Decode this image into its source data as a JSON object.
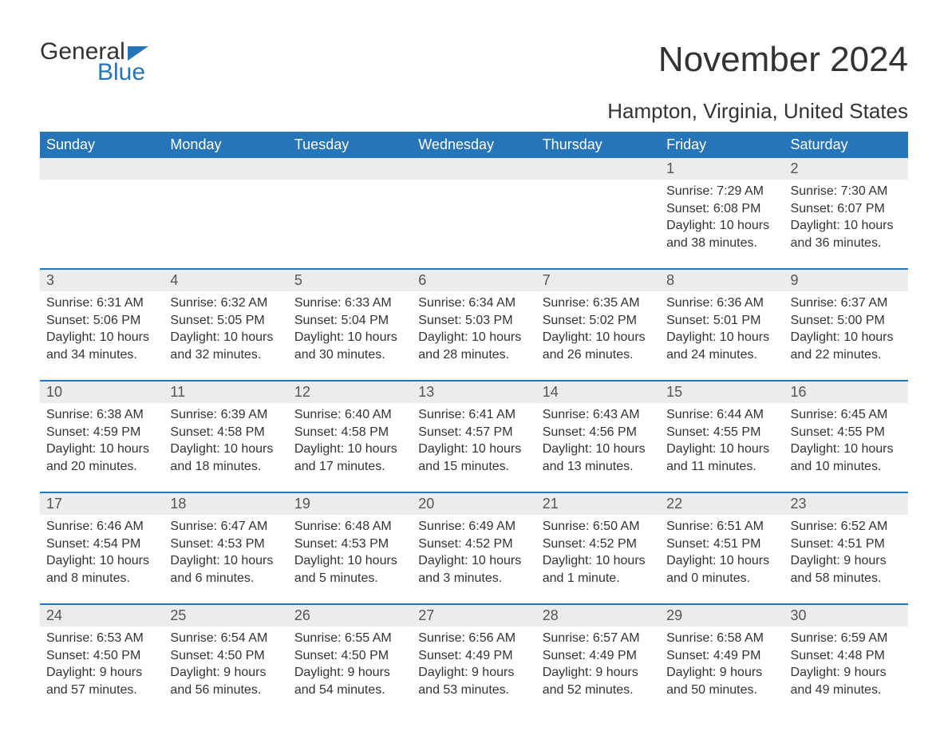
{
  "brand": {
    "word1": "General",
    "word2": "Blue"
  },
  "title": "November 2024",
  "location": "Hampton, Virginia, United States",
  "colors": {
    "header_bg": "#2675b8",
    "header_text": "#ffffff",
    "daynum_bg": "#ececec",
    "border": "#2675b8",
    "text": "#333333",
    "brand_accent": "#2675b8",
    "page_bg": "#ffffff"
  },
  "day_names": [
    "Sunday",
    "Monday",
    "Tuesday",
    "Wednesday",
    "Thursday",
    "Friday",
    "Saturday"
  ],
  "weeks": [
    [
      {
        "n": "",
        "sr": "",
        "ss": "",
        "dl": ""
      },
      {
        "n": "",
        "sr": "",
        "ss": "",
        "dl": ""
      },
      {
        "n": "",
        "sr": "",
        "ss": "",
        "dl": ""
      },
      {
        "n": "",
        "sr": "",
        "ss": "",
        "dl": ""
      },
      {
        "n": "",
        "sr": "",
        "ss": "",
        "dl": ""
      },
      {
        "n": "1",
        "sr": "Sunrise: 7:29 AM",
        "ss": "Sunset: 6:08 PM",
        "dl": "Daylight: 10 hours and 38 minutes."
      },
      {
        "n": "2",
        "sr": "Sunrise: 7:30 AM",
        "ss": "Sunset: 6:07 PM",
        "dl": "Daylight: 10 hours and 36 minutes."
      }
    ],
    [
      {
        "n": "3",
        "sr": "Sunrise: 6:31 AM",
        "ss": "Sunset: 5:06 PM",
        "dl": "Daylight: 10 hours and 34 minutes."
      },
      {
        "n": "4",
        "sr": "Sunrise: 6:32 AM",
        "ss": "Sunset: 5:05 PM",
        "dl": "Daylight: 10 hours and 32 minutes."
      },
      {
        "n": "5",
        "sr": "Sunrise: 6:33 AM",
        "ss": "Sunset: 5:04 PM",
        "dl": "Daylight: 10 hours and 30 minutes."
      },
      {
        "n": "6",
        "sr": "Sunrise: 6:34 AM",
        "ss": "Sunset: 5:03 PM",
        "dl": "Daylight: 10 hours and 28 minutes."
      },
      {
        "n": "7",
        "sr": "Sunrise: 6:35 AM",
        "ss": "Sunset: 5:02 PM",
        "dl": "Daylight: 10 hours and 26 minutes."
      },
      {
        "n": "8",
        "sr": "Sunrise: 6:36 AM",
        "ss": "Sunset: 5:01 PM",
        "dl": "Daylight: 10 hours and 24 minutes."
      },
      {
        "n": "9",
        "sr": "Sunrise: 6:37 AM",
        "ss": "Sunset: 5:00 PM",
        "dl": "Daylight: 10 hours and 22 minutes."
      }
    ],
    [
      {
        "n": "10",
        "sr": "Sunrise: 6:38 AM",
        "ss": "Sunset: 4:59 PM",
        "dl": "Daylight: 10 hours and 20 minutes."
      },
      {
        "n": "11",
        "sr": "Sunrise: 6:39 AM",
        "ss": "Sunset: 4:58 PM",
        "dl": "Daylight: 10 hours and 18 minutes."
      },
      {
        "n": "12",
        "sr": "Sunrise: 6:40 AM",
        "ss": "Sunset: 4:58 PM",
        "dl": "Daylight: 10 hours and 17 minutes."
      },
      {
        "n": "13",
        "sr": "Sunrise: 6:41 AM",
        "ss": "Sunset: 4:57 PM",
        "dl": "Daylight: 10 hours and 15 minutes."
      },
      {
        "n": "14",
        "sr": "Sunrise: 6:43 AM",
        "ss": "Sunset: 4:56 PM",
        "dl": "Daylight: 10 hours and 13 minutes."
      },
      {
        "n": "15",
        "sr": "Sunrise: 6:44 AM",
        "ss": "Sunset: 4:55 PM",
        "dl": "Daylight: 10 hours and 11 minutes."
      },
      {
        "n": "16",
        "sr": "Sunrise: 6:45 AM",
        "ss": "Sunset: 4:55 PM",
        "dl": "Daylight: 10 hours and 10 minutes."
      }
    ],
    [
      {
        "n": "17",
        "sr": "Sunrise: 6:46 AM",
        "ss": "Sunset: 4:54 PM",
        "dl": "Daylight: 10 hours and 8 minutes."
      },
      {
        "n": "18",
        "sr": "Sunrise: 6:47 AM",
        "ss": "Sunset: 4:53 PM",
        "dl": "Daylight: 10 hours and 6 minutes."
      },
      {
        "n": "19",
        "sr": "Sunrise: 6:48 AM",
        "ss": "Sunset: 4:53 PM",
        "dl": "Daylight: 10 hours and 5 minutes."
      },
      {
        "n": "20",
        "sr": "Sunrise: 6:49 AM",
        "ss": "Sunset: 4:52 PM",
        "dl": "Daylight: 10 hours and 3 minutes."
      },
      {
        "n": "21",
        "sr": "Sunrise: 6:50 AM",
        "ss": "Sunset: 4:52 PM",
        "dl": "Daylight: 10 hours and 1 minute."
      },
      {
        "n": "22",
        "sr": "Sunrise: 6:51 AM",
        "ss": "Sunset: 4:51 PM",
        "dl": "Daylight: 10 hours and 0 minutes."
      },
      {
        "n": "23",
        "sr": "Sunrise: 6:52 AM",
        "ss": "Sunset: 4:51 PM",
        "dl": "Daylight: 9 hours and 58 minutes."
      }
    ],
    [
      {
        "n": "24",
        "sr": "Sunrise: 6:53 AM",
        "ss": "Sunset: 4:50 PM",
        "dl": "Daylight: 9 hours and 57 minutes."
      },
      {
        "n": "25",
        "sr": "Sunrise: 6:54 AM",
        "ss": "Sunset: 4:50 PM",
        "dl": "Daylight: 9 hours and 56 minutes."
      },
      {
        "n": "26",
        "sr": "Sunrise: 6:55 AM",
        "ss": "Sunset: 4:50 PM",
        "dl": "Daylight: 9 hours and 54 minutes."
      },
      {
        "n": "27",
        "sr": "Sunrise: 6:56 AM",
        "ss": "Sunset: 4:49 PM",
        "dl": "Daylight: 9 hours and 53 minutes."
      },
      {
        "n": "28",
        "sr": "Sunrise: 6:57 AM",
        "ss": "Sunset: 4:49 PM",
        "dl": "Daylight: 9 hours and 52 minutes."
      },
      {
        "n": "29",
        "sr": "Sunrise: 6:58 AM",
        "ss": "Sunset: 4:49 PM",
        "dl": "Daylight: 9 hours and 50 minutes."
      },
      {
        "n": "30",
        "sr": "Sunrise: 6:59 AM",
        "ss": "Sunset: 4:48 PM",
        "dl": "Daylight: 9 hours and 49 minutes."
      }
    ]
  ]
}
